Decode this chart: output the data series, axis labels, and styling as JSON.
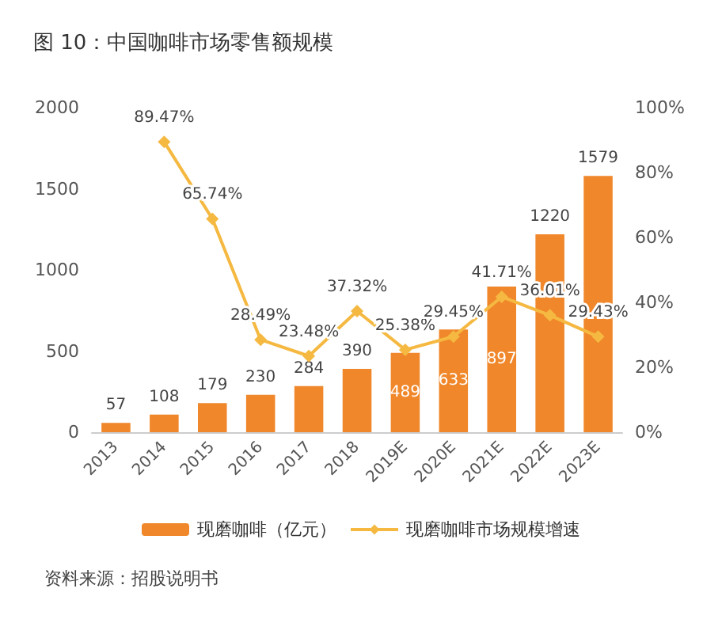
{
  "chart_data": {
    "type": "bar",
    "title": "图 10：中国咖啡市场零售额规模",
    "categories": [
      "2013",
      "2014",
      "2015",
      "2016",
      "2017",
      "2018",
      "2019E",
      "2020E",
      "2021E",
      "2022E",
      "2023E"
    ],
    "series": [
      {
        "name": "现磨咖啡（亿元）",
        "color": "#f0872a",
        "values": [
          57,
          108,
          179,
          230,
          284,
          390,
          489,
          633,
          897,
          1220,
          1579
        ],
        "value_labels": [
          "57",
          "108",
          "179",
          "230",
          "284",
          "390",
          "489",
          "633",
          "897",
          "1220",
          "1579"
        ]
      },
      {
        "name": "现磨咖啡市场规模增速",
        "type": "line",
        "axis": "y2",
        "color": "#f5b942",
        "values": [
          null,
          89.47,
          65.74,
          28.49,
          23.48,
          37.32,
          25.38,
          29.45,
          41.71,
          36.01,
          29.43
        ],
        "value_labels": [
          null,
          "89.47%",
          "65.74%",
          "28.49%",
          "23.48%",
          "37.32%",
          "25.38%",
          "29.45%",
          "41.71%",
          "36.01%",
          "29.43%"
        ]
      }
    ],
    "ylim": [
      0,
      2000
    ],
    "yticks": [
      0,
      500,
      1000,
      1500,
      2000
    ],
    "y2lim": [
      0,
      100
    ],
    "y2ticks": [
      {
        "value": 0,
        "label": "0%"
      },
      {
        "value": 20,
        "label": "20%"
      },
      {
        "value": 40,
        "label": "40%"
      },
      {
        "value": 60,
        "label": "60%"
      },
      {
        "value": 80,
        "label": "80%"
      },
      {
        "value": 100,
        "label": "100%"
      }
    ],
    "marker": "diamond",
    "grid": false,
    "legend": "bottom",
    "annotations": [
      "资料来源：招股说明书"
    ]
  }
}
